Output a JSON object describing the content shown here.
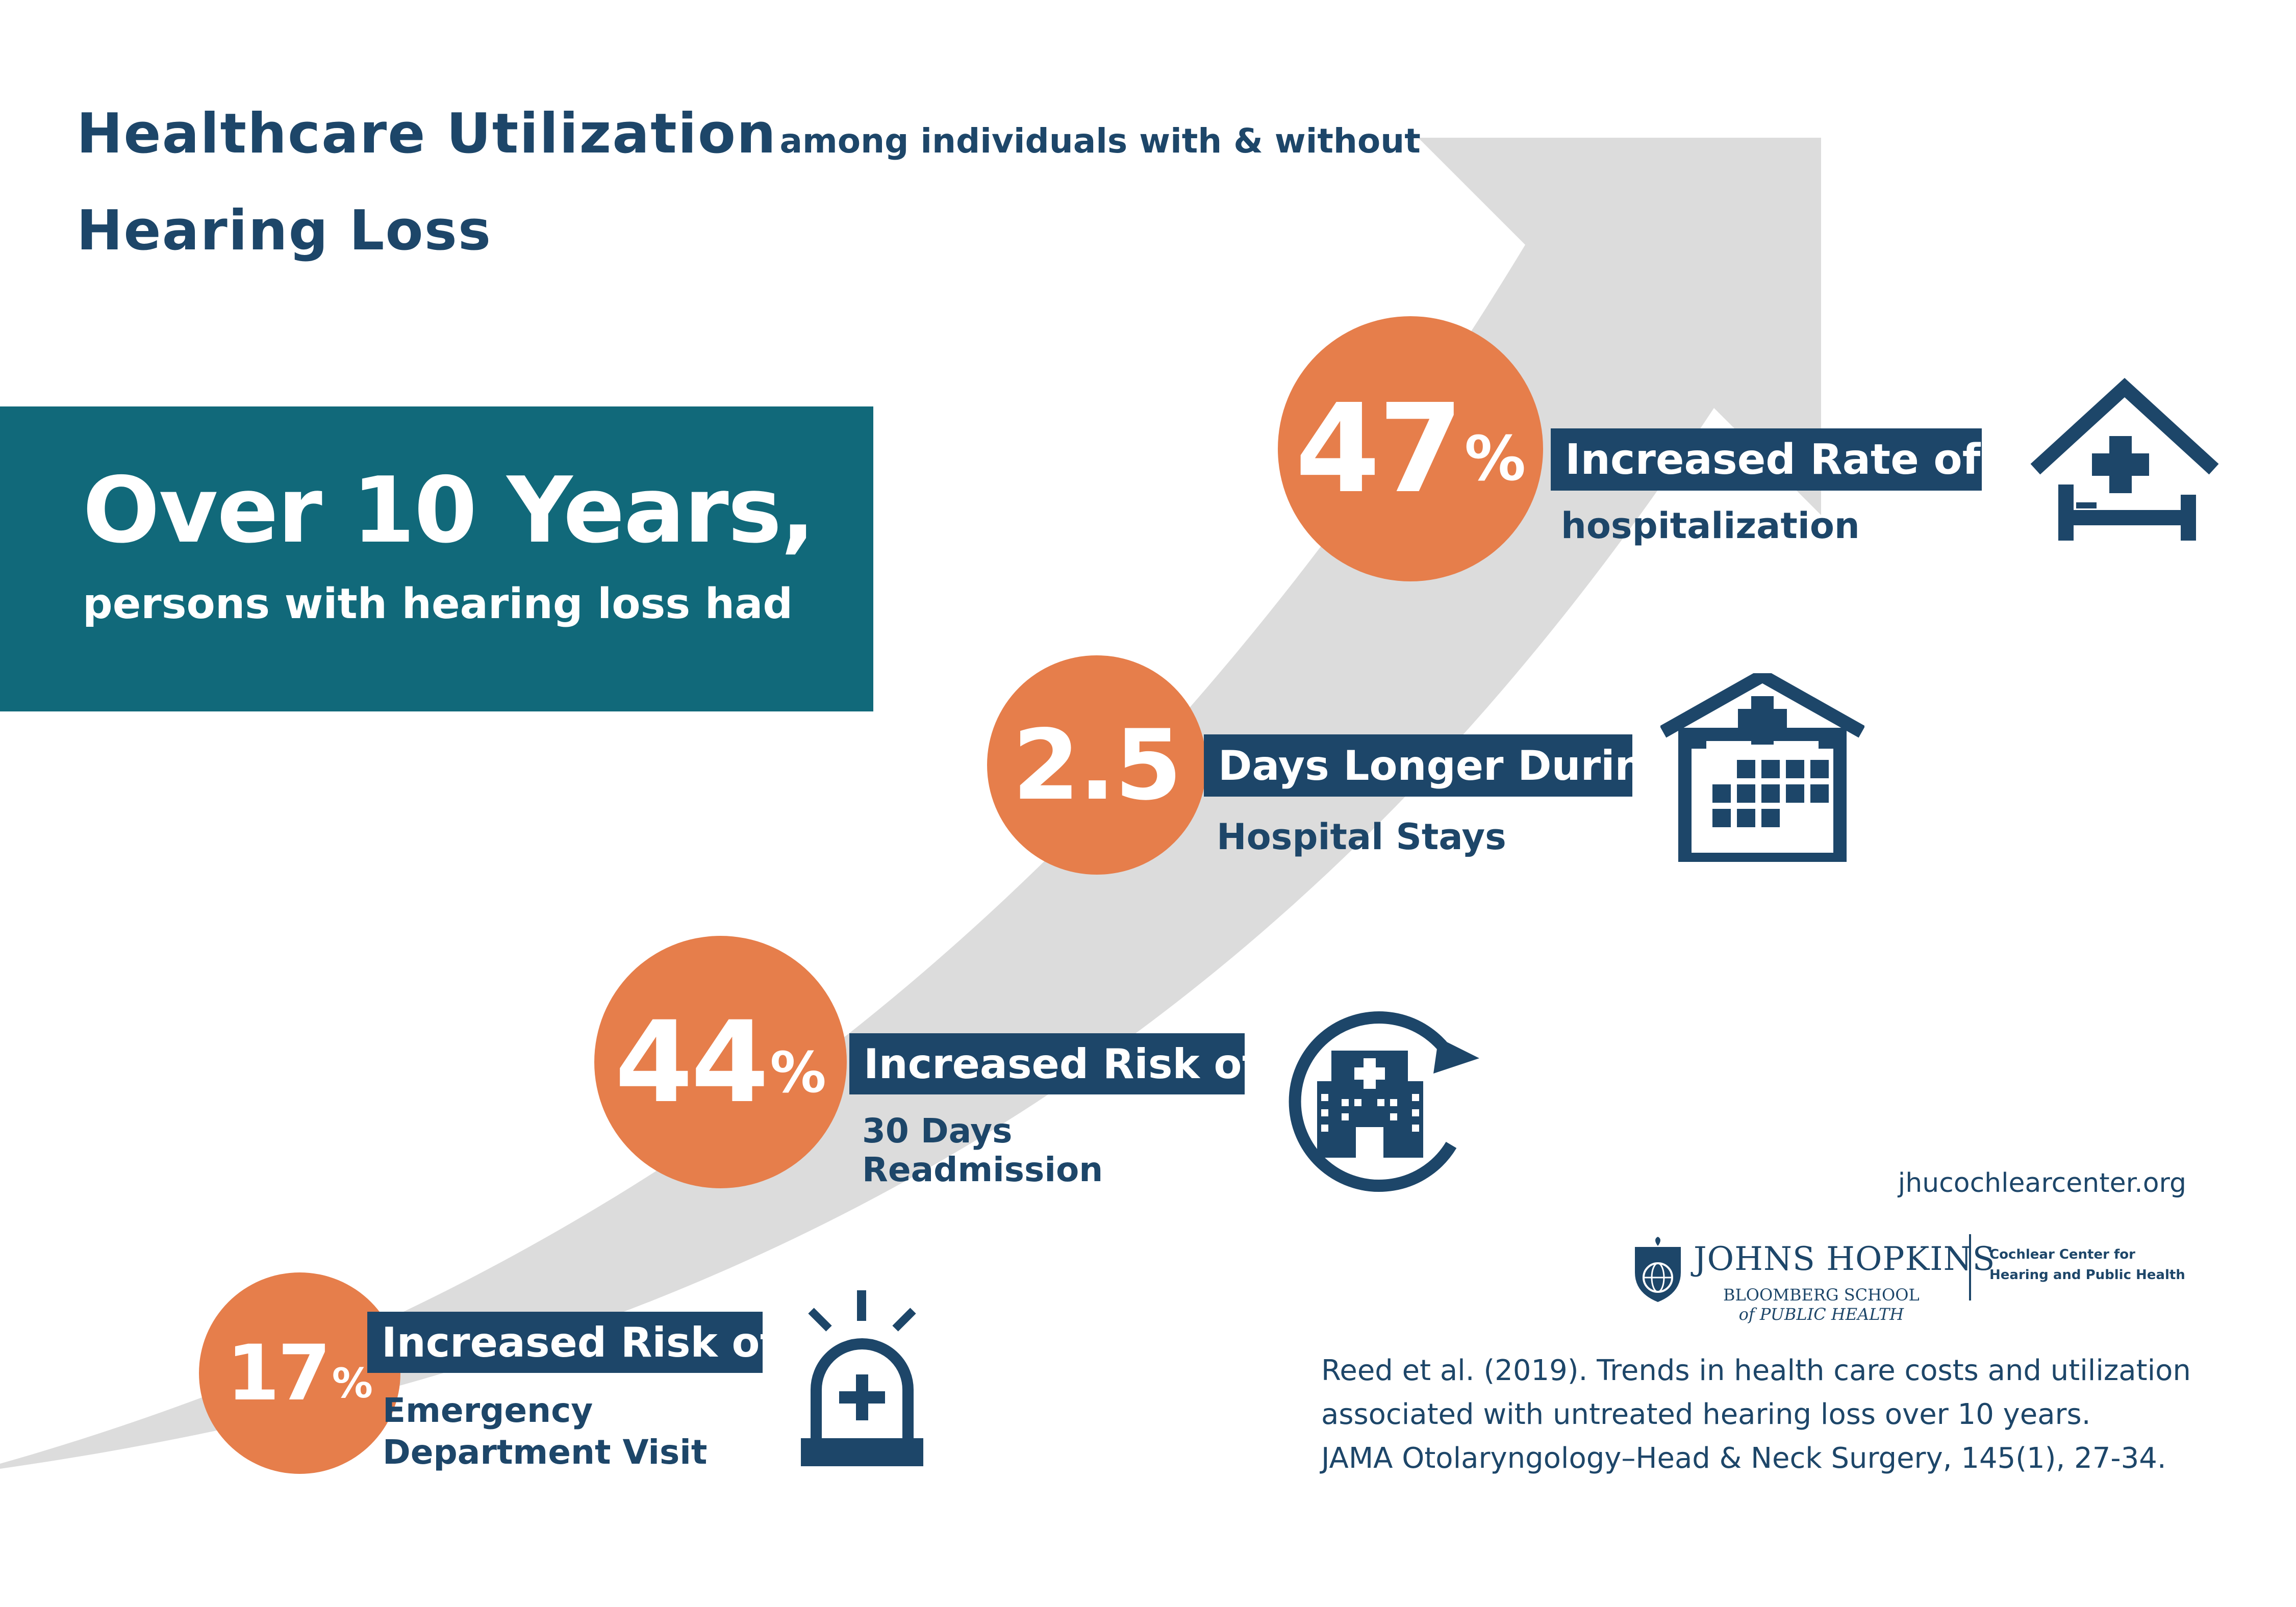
{
  "title": {
    "main": "Healthcare Utilization",
    "connector": "among individuals with & without",
    "line2": "Hearing Loss"
  },
  "intro": {
    "headline": "Over 10 Years,",
    "subline": "persons with hearing loss had"
  },
  "stats": [
    {
      "value": "47",
      "suffix": "%",
      "label": "Increased Rate of",
      "detail": "hospitalization",
      "icon": "hospital-bed-icon"
    },
    {
      "value": "2.5",
      "suffix": "",
      "label": "Days Longer During",
      "detail": "Hospital Stays",
      "icon": "hospital-calendar-icon"
    },
    {
      "value": "44",
      "suffix": "%",
      "label": "Increased Risk of",
      "detail_line1": "30 Days",
      "detail_line2": "Readmission",
      "icon": "hospital-readmission-icon"
    },
    {
      "value": "17",
      "suffix": "%",
      "label": "Increased Risk of",
      "detail_line1": "Emergency",
      "detail_line2": "Department Visit",
      "icon": "emergency-siren-icon"
    }
  ],
  "footer": {
    "url": "jhucochlearcenter.org",
    "logo_name": "JOHNS HOPKINS",
    "logo_school_line1": "BLOOMBERG SCHOOL",
    "logo_school_line2": "of PUBLIC HEALTH",
    "center_line1": "Cochlear Center for",
    "center_line2": "Hearing and Public Health",
    "citation_line1": "Reed et al. (2019). Trends in health care costs and utilization",
    "citation_line2": "associated with untreated hearing loss over 10 years.",
    "citation_line3": "JAMA Otolaryngology–Head & Neck Surgery, 145(1), 27-34."
  },
  "colors": {
    "navy": "#1d4669",
    "teal": "#11697a",
    "orange": "#e67e4b",
    "arrow_gray": "#dcdcdc"
  }
}
